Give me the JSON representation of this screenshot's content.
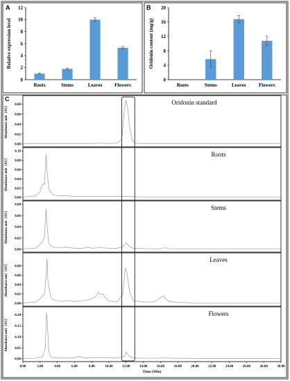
{
  "chart_data": [
    {
      "panel": "A",
      "type": "bar",
      "categories": [
        "Roots",
        "Stems",
        "Leaves",
        "Flowers"
      ],
      "values": [
        1.0,
        1.8,
        10.0,
        5.3
      ],
      "errors": [
        0.1,
        0.15,
        0.3,
        0.2
      ],
      "ylabel": "Relative expression level",
      "ylim": [
        0,
        12
      ],
      "yticks": [
        0,
        2,
        4,
        6,
        8,
        10,
        12
      ],
      "color": "#5b9bd5"
    },
    {
      "panel": "B",
      "type": "bar",
      "categories": [
        "Roots",
        "Stems",
        "Leaves",
        "Flowers"
      ],
      "values": [
        0,
        5.7,
        16.8,
        10.8
      ],
      "errors": [
        0,
        2.3,
        1.0,
        1.3
      ],
      "ylabel": "Oridonin content (mg/g)",
      "ylim": [
        0,
        20
      ],
      "yticks": [
        0,
        4,
        8,
        12,
        16,
        20
      ],
      "color": "#5b9bd5"
    },
    {
      "panel": "C",
      "type": "line",
      "xlabel": "Time (Min)",
      "xlim": [
        0,
        30
      ],
      "xticks": [
        "0.00",
        "2.00",
        "4.00",
        "6.00",
        "8.00",
        "10.00",
        "12.00",
        "14.00",
        "16.00",
        "18.00",
        "20.00",
        "22.00",
        "24.00",
        "26.00",
        "28.00",
        "30.00"
      ],
      "ylabel": "Absorbance unit（AU）",
      "highlight_window": [
        11.5,
        13.0
      ],
      "line_color": "#999999",
      "series": [
        {
          "name": "Oridonin standard",
          "ylim": [
            0,
            0.09
          ],
          "yticks": [
            "0.00",
            "0.02",
            "0.04",
            "0.06",
            "0.08"
          ],
          "x": [
            0,
            2,
            4,
            6,
            8,
            9,
            10,
            11,
            11.5,
            11.8,
            12.0,
            12.2,
            12.4,
            12.7,
            13.0,
            14,
            16,
            20,
            25,
            30
          ],
          "y": [
            0.001,
            0.001,
            0.001,
            0.001,
            0.001,
            0.002,
            0.001,
            0.002,
            0.01,
            0.07,
            0.088,
            0.07,
            0.035,
            0.008,
            0.002,
            0.001,
            0.001,
            0.001,
            0.001,
            0.001
          ]
        },
        {
          "name": "Roots",
          "ylim": [
            0,
            0.1
          ],
          "yticks": [
            "0.00",
            "0.02",
            "0.04",
            "0.06",
            "0.08",
            "0.10"
          ],
          "x": [
            0,
            1.0,
            1.5,
            2.0,
            2.2,
            2.4,
            2.5,
            2.6,
            2.7,
            2.8,
            3.0,
            3.2,
            3.5,
            4.0,
            4.5,
            5.0,
            6,
            8,
            10,
            12,
            14,
            18,
            30
          ],
          "y": [
            0.001,
            0.002,
            0.004,
            0.012,
            0.025,
            0.03,
            0.028,
            0.06,
            0.093,
            0.06,
            0.02,
            0.012,
            0.006,
            0.004,
            0.003,
            0.004,
            0.002,
            0.002,
            0.002,
            0.002,
            0.001,
            0.001,
            0.001
          ]
        },
        {
          "name": "Stems",
          "ylim": [
            0,
            0.08
          ],
          "yticks": [
            "0.00",
            "0.02",
            "0.04",
            "0.06",
            "0.08"
          ],
          "x": [
            0,
            1.5,
            2.2,
            2.5,
            2.6,
            2.7,
            2.8,
            3.0,
            3.3,
            4,
            5,
            6,
            7,
            7.5,
            8,
            9,
            10,
            11,
            11.8,
            12.0,
            12.2,
            12.6,
            13,
            15,
            16,
            16.5,
            17,
            20,
            30
          ],
          "y": [
            0.001,
            0.002,
            0.012,
            0.02,
            0.05,
            0.073,
            0.045,
            0.012,
            0.005,
            0.003,
            0.004,
            0.002,
            0.002,
            0.004,
            0.002,
            0.003,
            0.002,
            0.002,
            0.006,
            0.012,
            0.008,
            0.003,
            0.002,
            0.001,
            0.001,
            0.003,
            0.001,
            0.001,
            0.001
          ]
        },
        {
          "name": "Leaves",
          "ylim": [
            0,
            0.1
          ],
          "yticks": [
            "0.00",
            "0.02",
            "0.04",
            "0.06",
            "0.08"
          ],
          "x": [
            0,
            1.0,
            1.5,
            2.0,
            2.5,
            2.7,
            2.8,
            2.9,
            3.2,
            3.5,
            4,
            4.5,
            5,
            6,
            7,
            7.8,
            8.5,
            8.8,
            9.0,
            9.3,
            9.6,
            10,
            10.5,
            11,
            11.6,
            11.9,
            12.1,
            12.4,
            12.8,
            13.5,
            14,
            15,
            15.5,
            16,
            16.3,
            16.6,
            17,
            18,
            20,
            30
          ],
          "y": [
            0.001,
            0.002,
            0.003,
            0.01,
            0.02,
            0.06,
            0.095,
            0.05,
            0.015,
            0.008,
            0.006,
            0.004,
            0.006,
            0.004,
            0.006,
            0.008,
            0.015,
            0.024,
            0.019,
            0.02,
            0.012,
            0.006,
            0.004,
            0.004,
            0.02,
            0.075,
            0.065,
            0.025,
            0.006,
            0.004,
            0.003,
            0.003,
            0.005,
            0.012,
            0.016,
            0.01,
            0.004,
            0.002,
            0.001,
            0.001
          ]
        },
        {
          "name": "Flowers",
          "ylim": [
            0,
            0.22
          ],
          "yticks": [
            "0.00",
            "0.05",
            "0.10",
            "0.15",
            "0.20"
          ],
          "x": [
            0,
            1.5,
            2.3,
            2.6,
            2.75,
            2.85,
            3.0,
            3.2,
            3.5,
            4,
            5,
            6,
            6.5,
            7,
            8,
            9,
            10,
            11,
            11.8,
            12.0,
            12.3,
            12.8,
            14,
            16,
            16.5,
            17,
            20,
            30
          ],
          "y": [
            0.002,
            0.003,
            0.01,
            0.05,
            0.21,
            0.16,
            0.04,
            0.01,
            0.005,
            0.004,
            0.004,
            0.004,
            0.012,
            0.004,
            0.004,
            0.006,
            0.004,
            0.004,
            0.012,
            0.03,
            0.014,
            0.004,
            0.003,
            0.003,
            0.006,
            0.003,
            0.002,
            0.002
          ]
        }
      ]
    }
  ]
}
